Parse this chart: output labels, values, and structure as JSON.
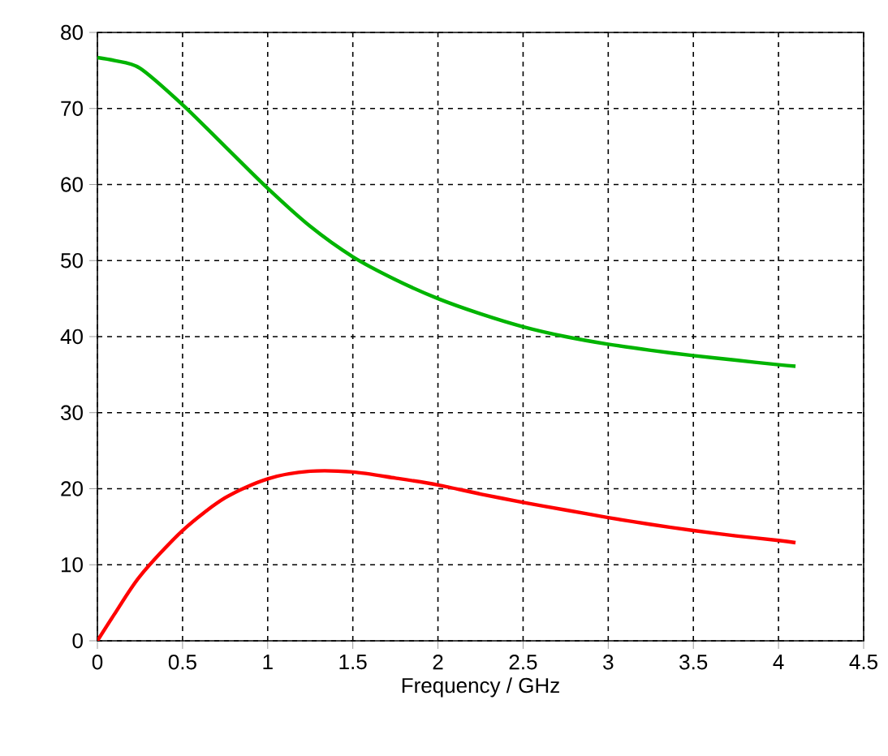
{
  "chart_data": {
    "type": "line",
    "xlabel": "Frequency / GHz",
    "x": [
      0,
      0.1,
      0.25,
      0.5,
      0.75,
      1,
      1.25,
      1.5,
      1.75,
      2,
      2.25,
      2.5,
      2.75,
      3,
      3.25,
      3.5,
      3.75,
      4,
      4.1
    ],
    "series": [
      {
        "color": "#00b400",
        "values": [
          76.7,
          76.3,
          75.3,
          70.5,
          65,
          59.5,
          54.5,
          50.5,
          47.5,
          45,
          43,
          41.3,
          40,
          39,
          38.2,
          37.5,
          36.9,
          36.3,
          36.1
        ]
      },
      {
        "color": "#ff0000",
        "values": [
          0,
          3.5,
          8.5,
          14.5,
          18.8,
          21.3,
          22.3,
          22.2,
          21.4,
          20.5,
          19.3,
          18.2,
          17.2,
          16.2,
          15.3,
          14.5,
          13.8,
          13.2,
          12.9
        ]
      }
    ],
    "xlim": [
      0,
      4.5
    ],
    "ylim": [
      0,
      80
    ],
    "xticks": [
      0,
      0.5,
      1,
      1.5,
      2,
      2.5,
      3,
      3.5,
      4,
      4.5
    ],
    "yticks": [
      0,
      10,
      20,
      30,
      40,
      50,
      60,
      70,
      80
    ],
    "grid": true,
    "marker": "none",
    "line_style": "solid"
  }
}
